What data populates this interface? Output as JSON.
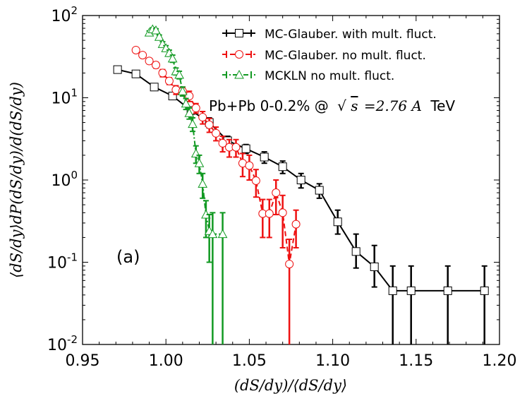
{
  "chart_data": {
    "type": "line",
    "yscale": "log",
    "title": "",
    "xlabel": "(dS/dy)/⟨dS/dy⟩",
    "ylabel": "⟨dS/dy⟩dP(dS/dy)/d(dS/dy)",
    "xlim": [
      0.95,
      1.2
    ],
    "ylim": [
      0.01,
      100
    ],
    "x_ticks": [
      "0.95",
      "1.00",
      "1.05",
      "1.10",
      "1.15",
      "1.20"
    ],
    "x_tick_values": [
      0.95,
      1.0,
      1.05,
      1.1,
      1.15,
      1.2
    ],
    "y_ticks": [
      {
        "value": 0.01,
        "base": "10",
        "exp": "-2"
      },
      {
        "value": 0.1,
        "base": "10",
        "exp": "-1"
      },
      {
        "value": 1,
        "base": "10",
        "exp": "0"
      },
      {
        "value": 10,
        "base": "10",
        "exp": "1"
      },
      {
        "value": 100,
        "base": "10",
        "exp": "2"
      }
    ],
    "legend_position": "top-right",
    "annotations": {
      "system": "Pb+Pb 0-0.2% @ √s = 2.76A TeV",
      "system_left": "Pb+Pb 0-0.2% @",
      "sqrt_symbol": "√",
      "s_symbol": "s",
      "eq_value": "=2.76",
      "A_symbol": "A",
      "unit": "TeV",
      "panel": "(a)"
    },
    "series": [
      {
        "name": "MC-Glauber. with mult. fluct.",
        "color": "#000000",
        "marker": "square",
        "linestyle": "solid",
        "x": [
          0.971,
          0.982,
          0.993,
          1.004,
          1.015,
          1.026,
          1.037,
          1.048,
          1.059,
          1.07,
          1.081,
          1.092,
          1.103,
          1.114,
          1.125,
          1.136,
          1.147,
          1.169,
          1.191
        ],
        "y": [
          22,
          19.5,
          13.5,
          10.5,
          7.0,
          5.0,
          3.0,
          2.4,
          1.9,
          1.45,
          1.0,
          0.75,
          0.31,
          0.135,
          0.088,
          0.045,
          0.045,
          0.045,
          0.045
        ],
        "lo": [
          21,
          18.5,
          12.5,
          9.8,
          6.3,
          4.3,
          2.6,
          2.1,
          1.6,
          1.2,
          0.8,
          0.6,
          0.22,
          0.085,
          0.05,
          0.005,
          0.005,
          0.005,
          0.005
        ],
        "hi": [
          23,
          20.5,
          14.5,
          11.2,
          7.7,
          5.7,
          3.4,
          2.7,
          2.2,
          1.7,
          1.2,
          0.9,
          0.43,
          0.22,
          0.16,
          0.09,
          0.09,
          0.09,
          0.09
        ]
      },
      {
        "name": "MC-Glauber. no mult. fluct.",
        "color": "#ee1111",
        "marker": "circle",
        "linestyle": "dashed",
        "x": [
          0.982,
          0.986,
          0.99,
          0.994,
          0.998,
          1.002,
          1.006,
          1.01,
          1.014,
          1.018,
          1.022,
          1.026,
          1.03,
          1.034,
          1.038,
          1.042,
          1.046,
          1.05,
          1.054,
          1.058,
          1.062,
          1.066,
          1.07,
          1.074,
          1.078
        ],
        "y": [
          38,
          33,
          28,
          25,
          20,
          16,
          12.5,
          12,
          10.5,
          7.5,
          5.8,
          4.7,
          3.7,
          2.8,
          2.5,
          2.5,
          1.6,
          1.5,
          0.98,
          0.39,
          0.39,
          0.7,
          0.4,
          0.095,
          0.29
        ],
        "lo": [
          36,
          31,
          26,
          23,
          18,
          14.5,
          11,
          10.5,
          9,
          6.5,
          4.8,
          3.8,
          3.0,
          2.2,
          1.9,
          1.9,
          1.1,
          1.0,
          0.62,
          0.2,
          0.2,
          0.38,
          0.15,
          0.005,
          0.15
        ],
        "hi": [
          40,
          35,
          30,
          27,
          22,
          17.5,
          14,
          13.5,
          12,
          8.5,
          6.8,
          5.6,
          4.4,
          3.4,
          3.1,
          3.1,
          2.1,
          2.0,
          1.34,
          0.58,
          0.58,
          1.0,
          0.65,
          0.19,
          0.43
        ]
      },
      {
        "name": "MCKLN no mult. fluct.",
        "color": "#119922",
        "marker": "triangle",
        "linestyle": "dashdot",
        "x": [
          0.99,
          0.992,
          0.994,
          0.996,
          0.998,
          1.0,
          1.002,
          1.004,
          1.006,
          1.008,
          1.01,
          1.012,
          1.014,
          1.016,
          1.018,
          1.02,
          1.022,
          1.024,
          1.026,
          1.028,
          1.034
        ],
        "y": [
          62,
          68,
          66,
          55,
          45,
          40,
          35,
          30,
          21,
          19,
          12,
          8.5,
          6.5,
          4.8,
          2.1,
          1.6,
          0.9,
          0.38,
          0.24,
          0.22,
          0.22
        ],
        "lo": [
          59,
          65,
          63,
          52,
          42,
          37,
          32,
          27,
          19,
          17,
          10.5,
          7.2,
          5.5,
          3.9,
          1.6,
          1.2,
          0.6,
          0.2,
          0.1,
          0.005,
          0.005
        ],
        "hi": [
          65,
          71,
          69,
          58,
          48,
          43,
          38,
          33,
          23,
          21,
          13.5,
          9.8,
          7.5,
          5.7,
          2.6,
          2.0,
          1.2,
          0.56,
          0.38,
          0.4,
          0.4
        ]
      }
    ]
  }
}
